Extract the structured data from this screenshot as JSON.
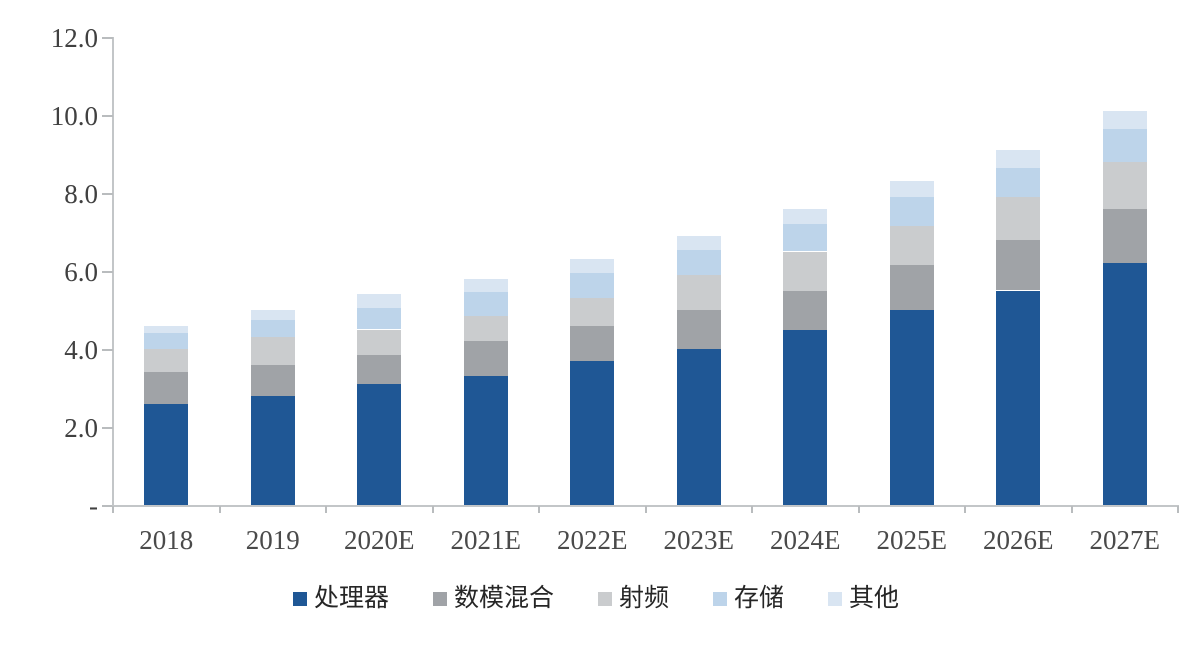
{
  "chart_data": {
    "type": "bar",
    "stacked": true,
    "title": "",
    "xlabel": "",
    "ylabel": "",
    "categories": [
      "2018",
      "2019",
      "2020E",
      "2021E",
      "2022E",
      "2023E",
      "2024E",
      "2025E",
      "2026E",
      "2027E"
    ],
    "series": [
      {
        "name": "处理器",
        "color": "#1F5795",
        "values": [
          2.6,
          2.8,
          3.1,
          3.3,
          3.7,
          4.0,
          4.5,
          5.0,
          5.5,
          6.2
        ]
      },
      {
        "name": "数模混合",
        "color": "#A0A3A7",
        "values": [
          0.8,
          0.8,
          0.75,
          0.9,
          0.9,
          1.0,
          1.0,
          1.15,
          1.3,
          1.4
        ]
      },
      {
        "name": "射频",
        "color": "#CACCCE",
        "values": [
          0.6,
          0.7,
          0.65,
          0.65,
          0.7,
          0.9,
          1.0,
          1.0,
          1.1,
          1.2
        ]
      },
      {
        "name": "存储",
        "color": "#BDD4EA",
        "values": [
          0.4,
          0.45,
          0.55,
          0.6,
          0.65,
          0.65,
          0.7,
          0.75,
          0.75,
          0.85
        ]
      },
      {
        "name": "其他",
        "color": "#D9E5F2",
        "values": [
          0.2,
          0.25,
          0.35,
          0.35,
          0.35,
          0.35,
          0.4,
          0.4,
          0.45,
          0.45
        ]
      }
    ],
    "totals": [
      4.6,
      5.0,
      5.4,
      5.8,
      6.3,
      6.9,
      7.6,
      8.3,
      9.1,
      10.1
    ],
    "ylim": [
      0,
      12
    ],
    "y_ticks": [
      {
        "label": "12.0",
        "value": 12
      },
      {
        "label": "10.0",
        "value": 10
      },
      {
        "label": "8.0",
        "value": 8
      },
      {
        "label": "6.0",
        "value": 6
      },
      {
        "label": "4.0",
        "value": 4
      },
      {
        "label": "2.0",
        "value": 2
      },
      {
        "label": "-",
        "value": 0
      }
    ],
    "grid": false,
    "legend_position": "bottom",
    "colors": {
      "axis": "#C3C6C8",
      "tick": "#B9BCBE",
      "y_label_text": "#404040",
      "x_label_text": "#4A4A4A",
      "legend_text": "#262626",
      "background": "#FFFFFF"
    }
  }
}
